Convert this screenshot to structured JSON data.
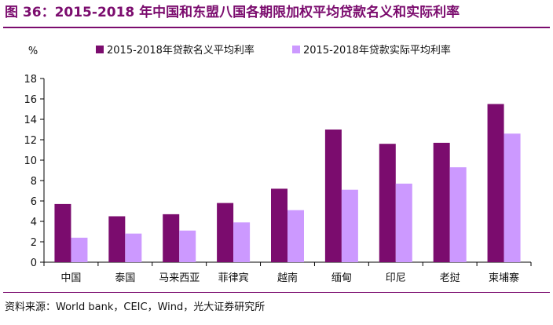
{
  "title": "图 36：2015-2018 年中国和东盟八国各期限加权平均贷款名义和实际利率",
  "source": "资料来源：World bank，CEIC，Wind，光大证券研究所",
  "chart_data": {
    "type": "bar",
    "unit_label": "%",
    "categories": [
      "中国",
      "泰国",
      "马来西亚",
      "菲律宾",
      "越南",
      "缅甸",
      "印尼",
      "老挝",
      "柬埔寨"
    ],
    "series": [
      {
        "name": "2015-2018年贷款名义平均利率",
        "color": "#7B0C6E",
        "values": [
          5.7,
          4.5,
          4.7,
          5.8,
          7.2,
          13.0,
          11.6,
          11.7,
          15.5
        ]
      },
      {
        "name": "2015-2018年贷款实际平均利率",
        "color": "#CC99FF",
        "values": [
          2.4,
          2.8,
          3.1,
          3.9,
          5.1,
          7.1,
          7.7,
          9.3,
          12.6
        ]
      }
    ],
    "ylim": [
      0,
      18
    ],
    "yticks": [
      "0",
      "2",
      "4",
      "6",
      "8",
      "10",
      "12",
      "14",
      "16",
      "18"
    ],
    "legend_position": "top",
    "grid": false
  }
}
